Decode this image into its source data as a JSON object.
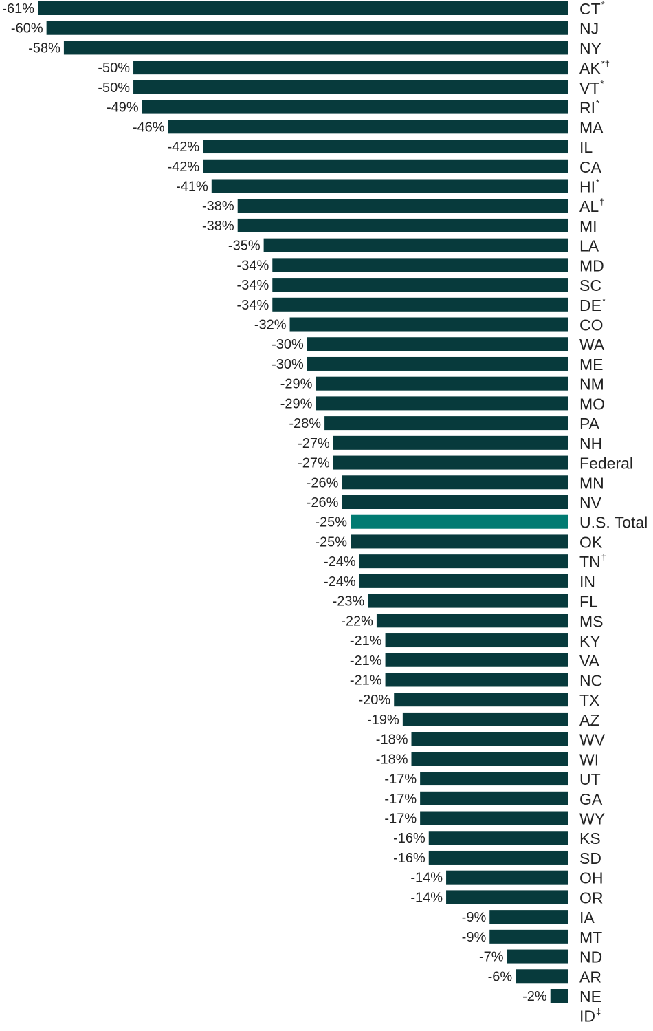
{
  "chart_data": {
    "type": "bar",
    "orientation": "horizontal",
    "title": "",
    "xlabel": "",
    "ylabel": "",
    "xlim": [
      -61,
      0
    ],
    "grid": false,
    "colors": {
      "default": "#073a3c",
      "highlight": "#017b72",
      "text": "#222222"
    },
    "rows": [
      {
        "label": "CT",
        "sup": "*",
        "value": -61,
        "value_label": "-61%"
      },
      {
        "label": "NJ",
        "sup": "",
        "value": -60,
        "value_label": "-60%"
      },
      {
        "label": "NY",
        "sup": "",
        "value": -58,
        "value_label": "-58%"
      },
      {
        "label": "AK",
        "sup": "*†",
        "value": -50,
        "value_label": "-50%"
      },
      {
        "label": "VT",
        "sup": "*",
        "value": -50,
        "value_label": "-50%"
      },
      {
        "label": "RI",
        "sup": "*",
        "value": -49,
        "value_label": "-49%"
      },
      {
        "label": "MA",
        "sup": "",
        "value": -46,
        "value_label": "-46%"
      },
      {
        "label": "IL",
        "sup": "",
        "value": -42,
        "value_label": "-42%"
      },
      {
        "label": "CA",
        "sup": "",
        "value": -42,
        "value_label": "-42%"
      },
      {
        "label": "HI",
        "sup": "*",
        "value": -41,
        "value_label": "-41%"
      },
      {
        "label": "AL",
        "sup": "†",
        "value": -38,
        "value_label": "-38%"
      },
      {
        "label": "MI",
        "sup": "",
        "value": -38,
        "value_label": "-38%"
      },
      {
        "label": "LA",
        "sup": "",
        "value": -35,
        "value_label": "-35%"
      },
      {
        "label": "MD",
        "sup": "",
        "value": -34,
        "value_label": "-34%"
      },
      {
        "label": "SC",
        "sup": "",
        "value": -34,
        "value_label": "-34%"
      },
      {
        "label": "DE",
        "sup": "*",
        "value": -34,
        "value_label": "-34%"
      },
      {
        "label": "CO",
        "sup": "",
        "value": -32,
        "value_label": "-32%"
      },
      {
        "label": "WA",
        "sup": "",
        "value": -30,
        "value_label": "-30%"
      },
      {
        "label": "ME",
        "sup": "",
        "value": -30,
        "value_label": "-30%"
      },
      {
        "label": "NM",
        "sup": "",
        "value": -29,
        "value_label": "-29%"
      },
      {
        "label": "MO",
        "sup": "",
        "value": -29,
        "value_label": "-29%"
      },
      {
        "label": "PA",
        "sup": "",
        "value": -28,
        "value_label": "-28%"
      },
      {
        "label": "NH",
        "sup": "",
        "value": -27,
        "value_label": "-27%"
      },
      {
        "label": "Federal",
        "sup": "",
        "value": -27,
        "value_label": "-27%"
      },
      {
        "label": "MN",
        "sup": "",
        "value": -26,
        "value_label": "-26%"
      },
      {
        "label": "NV",
        "sup": "",
        "value": -26,
        "value_label": "-26%"
      },
      {
        "label": "U.S. Total",
        "sup": "",
        "value": -25,
        "value_label": "-25%",
        "highlight": true
      },
      {
        "label": "OK",
        "sup": "",
        "value": -25,
        "value_label": "-25%"
      },
      {
        "label": "TN",
        "sup": "†",
        "value": -24,
        "value_label": "-24%"
      },
      {
        "label": "IN",
        "sup": "",
        "value": -24,
        "value_label": "-24%"
      },
      {
        "label": "FL",
        "sup": "",
        "value": -23,
        "value_label": "-23%"
      },
      {
        "label": "MS",
        "sup": "",
        "value": -22,
        "value_label": "-22%"
      },
      {
        "label": "KY",
        "sup": "",
        "value": -21,
        "value_label": "-21%"
      },
      {
        "label": "VA",
        "sup": "",
        "value": -21,
        "value_label": "-21%"
      },
      {
        "label": "NC",
        "sup": "",
        "value": -21,
        "value_label": "-21%"
      },
      {
        "label": "TX",
        "sup": "",
        "value": -20,
        "value_label": "-20%"
      },
      {
        "label": "AZ",
        "sup": "",
        "value": -19,
        "value_label": "-19%"
      },
      {
        "label": "WV",
        "sup": "",
        "value": -18,
        "value_label": "-18%"
      },
      {
        "label": "WI",
        "sup": "",
        "value": -18,
        "value_label": "-18%"
      },
      {
        "label": "UT",
        "sup": "",
        "value": -17,
        "value_label": "-17%"
      },
      {
        "label": "GA",
        "sup": "",
        "value": -17,
        "value_label": "-17%"
      },
      {
        "label": "WY",
        "sup": "",
        "value": -17,
        "value_label": "-17%"
      },
      {
        "label": "KS",
        "sup": "",
        "value": -16,
        "value_label": "-16%"
      },
      {
        "label": "SD",
        "sup": "",
        "value": -16,
        "value_label": "-16%"
      },
      {
        "label": "OH",
        "sup": "",
        "value": -14,
        "value_label": "-14%"
      },
      {
        "label": "OR",
        "sup": "",
        "value": -14,
        "value_label": "-14%"
      },
      {
        "label": "IA",
        "sup": "",
        "value": -9,
        "value_label": "-9%"
      },
      {
        "label": "MT",
        "sup": "",
        "value": -9,
        "value_label": "-9%"
      },
      {
        "label": "ND",
        "sup": "",
        "value": -7,
        "value_label": "-7%"
      },
      {
        "label": "AR",
        "sup": "",
        "value": -6,
        "value_label": "-6%"
      },
      {
        "label": "NE",
        "sup": "",
        "value": -2,
        "value_label": "-2%"
      },
      {
        "label": "ID",
        "sup": "‡",
        "value": null,
        "value_label": null
      }
    ]
  }
}
